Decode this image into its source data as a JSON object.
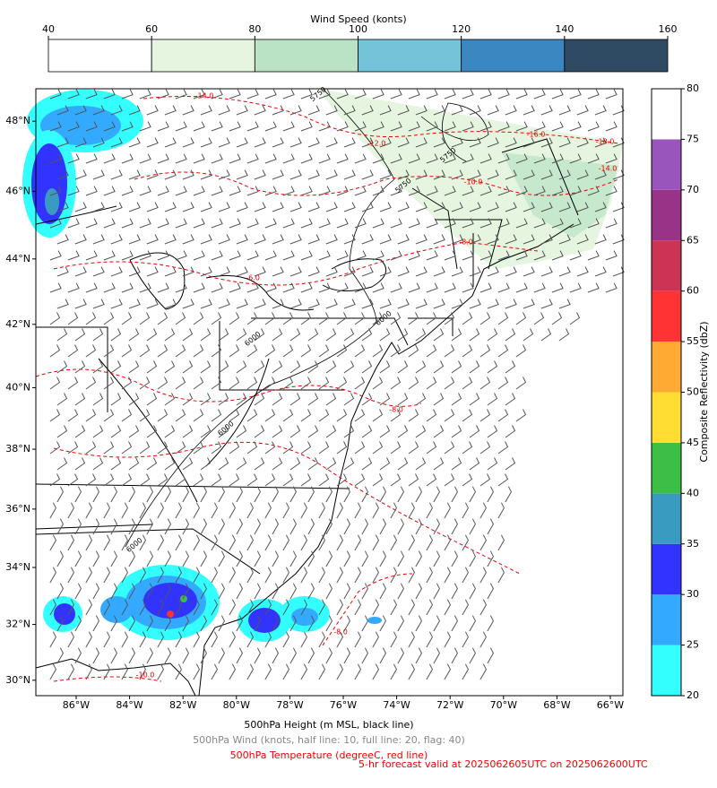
{
  "wind_colorbar": {
    "label": "Wind Speed (konts)",
    "ticks": [
      40,
      60,
      80,
      100,
      120,
      140,
      160
    ],
    "colors": [
      "#ffffff",
      "#e5f5e0",
      "#b9e3c4",
      "#74c3d9",
      "#3a87c2",
      "#2f4a63"
    ]
  },
  "reflectivity_colorbar": {
    "label": "Composite Reflectivity (dbZ)",
    "ticks": [
      20,
      25,
      30,
      35,
      40,
      45,
      50,
      55,
      60,
      65,
      70,
      75,
      80
    ],
    "colors": [
      "#33ffff",
      "#33aaff",
      "#3333ff",
      "#3a9bc1",
      "#3cbf44",
      "#ffdd33",
      "#ffaa33",
      "#ff3333",
      "#cc3355",
      "#993388",
      "#9955bb",
      "#ffffff"
    ]
  },
  "map": {
    "lon_range": [
      -87.51,
      -65.53
    ],
    "lat_range": [
      29.44,
      48.9
    ],
    "lon_ticks": [
      {
        "value": -86,
        "label": "86°W"
      },
      {
        "value": -84,
        "label": "84°W"
      },
      {
        "value": -82,
        "label": "82°W"
      },
      {
        "value": -80,
        "label": "80°W"
      },
      {
        "value": -78,
        "label": "78°W"
      },
      {
        "value": -76,
        "label": "76°W"
      },
      {
        "value": -74,
        "label": "74°W"
      },
      {
        "value": -72,
        "label": "72°W"
      },
      {
        "value": -70,
        "label": "70°W"
      },
      {
        "value": -68,
        "label": "68°W"
      },
      {
        "value": -66,
        "label": "66°W"
      }
    ],
    "lat_ticks": [
      {
        "value": 30,
        "label": "30°N"
      },
      {
        "value": 32,
        "label": "32°N"
      },
      {
        "value": 34,
        "label": "34°N"
      },
      {
        "value": 36,
        "label": "36°N"
      },
      {
        "value": 38,
        "label": "38°N"
      },
      {
        "value": 40,
        "label": "40°N"
      },
      {
        "value": 42,
        "label": "42°N"
      },
      {
        "value": 44,
        "label": "44°N"
      },
      {
        "value": 46,
        "label": "46°N"
      },
      {
        "value": 48,
        "label": "48°N"
      }
    ],
    "height_contour_labels": [
      "5750",
      "5750",
      "5750",
      "6000",
      "6000",
      "6000",
      "6000"
    ],
    "temperature_contour_labels": [
      "-14.0",
      "-12.0",
      "-10.0",
      "-16.0",
      "-18.0",
      "-14.0",
      "-8.0",
      "-6.0",
      "-8.0",
      "-10.0",
      "-8.0"
    ]
  },
  "captions": {
    "height": "500hPa Height (m MSL, black line)",
    "wind": "500hPa Wind (knots, half line: 10, full line: 20, flag: 40)",
    "temperature": "500hPa Temperature (degreeC, red line)",
    "forecast": "5-hr forecast valid at 2025062605UTC on 2025062600UTC"
  }
}
